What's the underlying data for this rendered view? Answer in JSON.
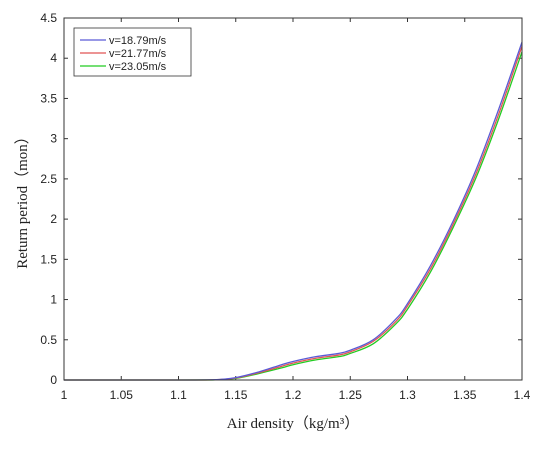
{
  "chart_data": {
    "type": "line",
    "xlabel": "Air density（kg/m³）",
    "ylabel": "Return period（mon）",
    "xlim": [
      1,
      1.4
    ],
    "ylim": [
      0,
      4.5
    ],
    "x_ticks": [
      1,
      1.05,
      1.1,
      1.15,
      1.2,
      1.25,
      1.3,
      1.35,
      1.4
    ],
    "x_tick_labels": [
      "1",
      "1.05",
      "1.1",
      "1.15",
      "1.2",
      "1.25",
      "1.3",
      "1.35",
      "1.4"
    ],
    "y_ticks": [
      0,
      0.5,
      1,
      1.5,
      2,
      2.5,
      3,
      3.5,
      4,
      4.5
    ],
    "y_tick_labels": [
      "0",
      "0.5",
      "1",
      "1.5",
      "2",
      "2.5",
      "3",
      "3.5",
      "4",
      "4.5"
    ],
    "grid": false,
    "legend_position": "top-left",
    "x": [
      1.0,
      1.05,
      1.1,
      1.13,
      1.15,
      1.17,
      1.19,
      1.2,
      1.22,
      1.24,
      1.25,
      1.27,
      1.29,
      1.3,
      1.32,
      1.34,
      1.36,
      1.38,
      1.4
    ],
    "series": [
      {
        "name": "v=18.79m/s",
        "color": "#5a5ad6",
        "values": [
          0,
          0,
          0,
          0.003,
          0.03,
          0.1,
          0.19,
          0.23,
          0.29,
          0.33,
          0.37,
          0.5,
          0.76,
          0.95,
          1.42,
          1.98,
          2.62,
          3.38,
          4.2
        ]
      },
      {
        "name": "v=21.77m/s",
        "color": "#e05555",
        "values": [
          0,
          0,
          0,
          0.002,
          0.025,
          0.09,
          0.17,
          0.21,
          0.27,
          0.31,
          0.35,
          0.48,
          0.73,
          0.92,
          1.38,
          1.94,
          2.57,
          3.32,
          4.15
        ]
      },
      {
        "name": "v=23.05m/s",
        "color": "#22cc22",
        "values": [
          0,
          0,
          0,
          0.001,
          0.02,
          0.08,
          0.15,
          0.19,
          0.25,
          0.29,
          0.33,
          0.45,
          0.7,
          0.88,
          1.34,
          1.9,
          2.52,
          3.26,
          4.08
        ]
      }
    ]
  }
}
